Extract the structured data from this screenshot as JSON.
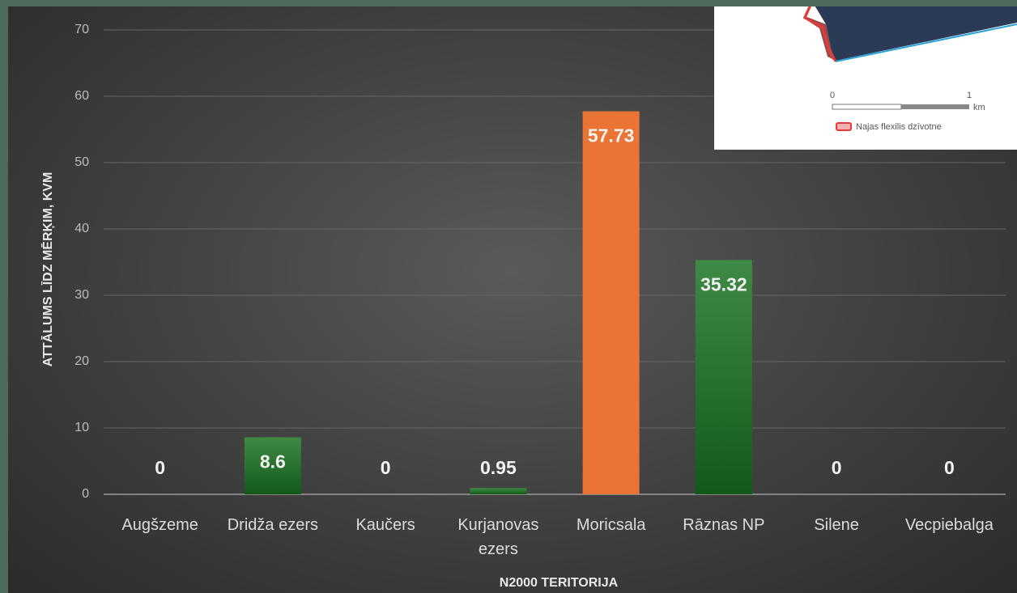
{
  "chart_data": {
    "type": "bar",
    "categories": [
      "Augšzeme",
      "Dridža ezers",
      "Kaučers",
      "Kurjanovas ezers",
      "Moricsala",
      "Rāznas NP",
      "Silene",
      "Vecpiebalga"
    ],
    "values": [
      0,
      8.6,
      0,
      0.95,
      57.73,
      35.32,
      0,
      0
    ],
    "colors": [
      "#2e7a33",
      "#2e7a33",
      "#2e7a33",
      "#2e7a33",
      "#ea7433",
      "#2e7a33",
      "#2e7a33",
      "#2e7a33"
    ],
    "ylim": [
      0,
      70
    ],
    "yticks": [
      0,
      10,
      20,
      30,
      40,
      50,
      60,
      70
    ],
    "grid": true,
    "x_label": "N2000 TERITORIJA",
    "y_label": "ATTĀLUMS LĪDZ MĒRĶIM, KVM"
  },
  "inset": {
    "scale_labels": [
      "0",
      "1",
      "km"
    ],
    "legend": "Najas flexilis dzīvotne"
  }
}
